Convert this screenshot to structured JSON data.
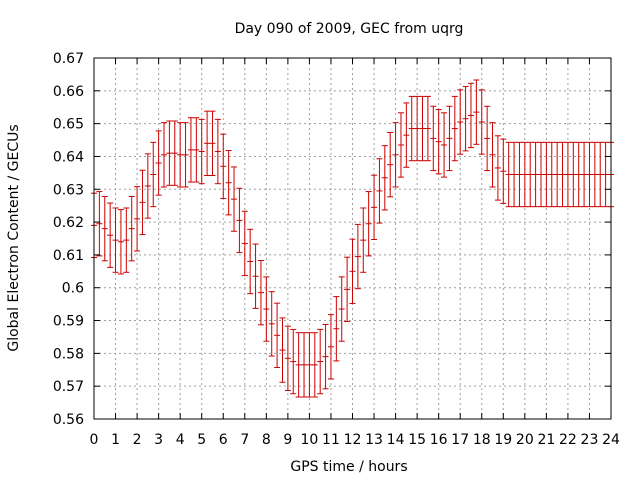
{
  "chart_data": {
    "type": "scatter",
    "title": "Day 090 of 2009, GEC from uqrg",
    "xlabel": "GPS time / hours",
    "ylabel": "Global Electron Content / GECUs",
    "xlim": [
      0,
      24
    ],
    "ylim": [
      0.56,
      0.67
    ],
    "xticks": [
      "0",
      "1",
      "2",
      "3",
      "4",
      "5",
      "6",
      "7",
      "8",
      "9",
      "10",
      "11",
      "12",
      "13",
      "14",
      "15",
      "16",
      "17",
      "18",
      "19",
      "20",
      "21",
      "22",
      "23",
      "24"
    ],
    "yticks": [
      "0.56",
      "0.57",
      "0.58",
      "0.59",
      "0.6",
      "0.61",
      "0.62",
      "0.63",
      "0.64",
      "0.65",
      "0.66",
      "0.67"
    ],
    "grid": true,
    "series": [
      {
        "name": "GEC",
        "color": "#cc0000",
        "error": 0.0098,
        "x": [
          0,
          0.25,
          0.5,
          0.75,
          1,
          1.25,
          1.5,
          1.75,
          2,
          2.25,
          2.5,
          2.75,
          3,
          3.25,
          3.5,
          3.75,
          4,
          4.25,
          4.5,
          4.75,
          5,
          5.25,
          5.5,
          5.75,
          6,
          6.25,
          6.5,
          6.75,
          7,
          7.25,
          7.5,
          7.75,
          8,
          8.25,
          8.5,
          8.75,
          9,
          9.25,
          9.5,
          9.75,
          10,
          10.25,
          10.5,
          10.75,
          11,
          11.25,
          11.5,
          11.75,
          12,
          12.25,
          12.5,
          12.75,
          13,
          13.25,
          13.5,
          13.75,
          14,
          14.25,
          14.5,
          14.75,
          15,
          15.25,
          15.5,
          15.75,
          16,
          16.25,
          16.5,
          16.75,
          17,
          17.25,
          17.5,
          17.75,
          18,
          18.25,
          18.5,
          18.75,
          19,
          19.25,
          19.5,
          19.75,
          20,
          20.25,
          20.5,
          20.75,
          21,
          21.25,
          21.5,
          21.75,
          22,
          22.25,
          22.5,
          22.75,
          23,
          23.25,
          23.5,
          23.75,
          24
        ],
        "y": [
          0.619,
          0.6195,
          0.618,
          0.616,
          0.6145,
          0.614,
          0.6145,
          0.618,
          0.621,
          0.626,
          0.631,
          0.6345,
          0.638,
          0.6405,
          0.641,
          0.641,
          0.6405,
          0.6405,
          0.642,
          0.642,
          0.6415,
          0.644,
          0.644,
          0.6415,
          0.637,
          0.632,
          0.627,
          0.6205,
          0.6135,
          0.608,
          0.6035,
          0.5985,
          0.5935,
          0.589,
          0.5855,
          0.581,
          0.5785,
          0.5775,
          0.5765,
          0.5765,
          0.5765,
          0.5765,
          0.5775,
          0.579,
          0.582,
          0.5875,
          0.5935,
          0.5995,
          0.605,
          0.6095,
          0.6145,
          0.6195,
          0.6245,
          0.6295,
          0.6335,
          0.6375,
          0.6405,
          0.6435,
          0.6465,
          0.6485,
          0.6485,
          0.6485,
          0.6485,
          0.6455,
          0.6445,
          0.6435,
          0.6455,
          0.6485,
          0.6505,
          0.6515,
          0.6525,
          0.6535,
          0.6505,
          0.6455,
          0.6405,
          0.6365,
          0.6355,
          0.6345,
          0.6345,
          0.6345,
          0.6345,
          0.6345,
          0.6345,
          0.6345,
          0.6345,
          0.6345,
          0.6345,
          0.6345,
          0.6345,
          0.6345,
          0.6345,
          0.6345,
          0.6345,
          0.6345,
          0.6345,
          0.6345,
          0.6345
        ]
      }
    ]
  }
}
